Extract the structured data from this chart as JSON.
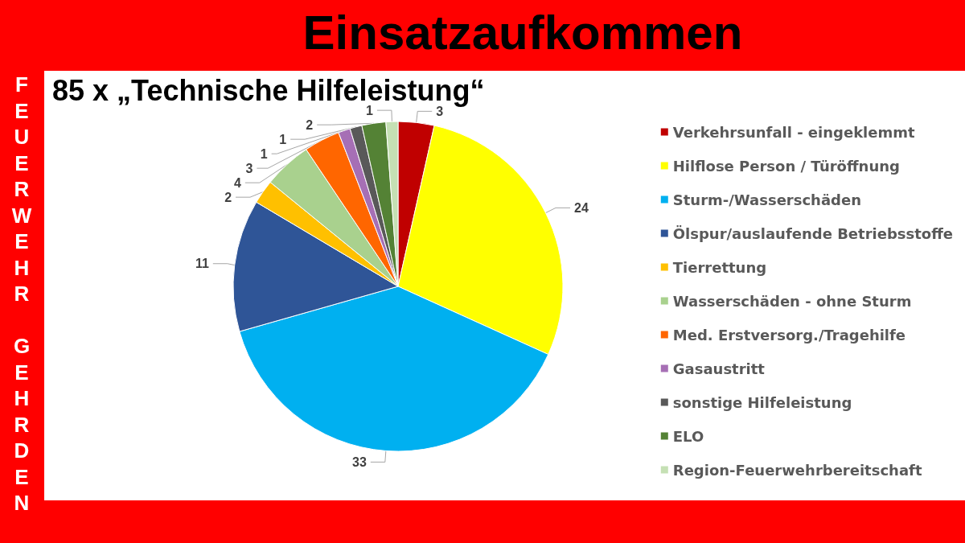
{
  "chart_data": {
    "type": "pie",
    "title": "Einsatzaufkommen",
    "subtitle": "85 x „Technische Hilfeleistung“",
    "annotations": [
      "FEUERWEHR GEHRDEN"
    ],
    "categories": [
      "Verkehrsunfall - eingeklemmt",
      "Hilflose Person / Türöffnung",
      "Sturm-/Wasserschäden",
      "Ölspur/auslaufende Betriebsstoffe",
      "Tierrettung",
      "Wasserschäden - ohne Sturm",
      "Med. Erstversorg./Tragehilfe",
      "Gasaustritt",
      "sonstige Hilfeleistung",
      "ELO",
      "Region-Feuerwehrbereitschaft"
    ],
    "values": [
      3,
      24,
      33,
      11,
      2,
      4,
      3,
      1,
      1,
      2,
      1
    ],
    "colors": [
      "#c00000",
      "#ffff00",
      "#00b0f0",
      "#2f5597",
      "#ffc000",
      "#a9d18e",
      "#ff6600",
      "#a66fb5",
      "#595959",
      "#548235",
      "#c5e0b4"
    ],
    "data_labels": true,
    "legend": "right"
  }
}
